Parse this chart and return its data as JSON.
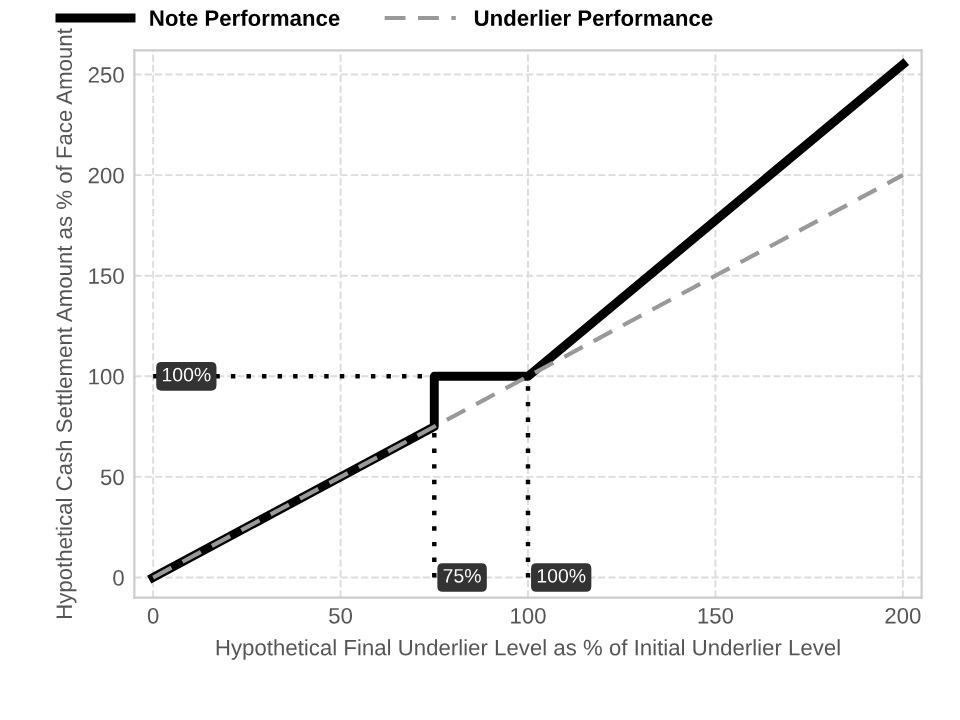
{
  "chart_data": {
    "type": "line",
    "xlabel": "Hypothetical Final Underlier Level as % of Initial Underlier Level",
    "ylabel": "Hypothetical Cash Settlement Amount as % of Face Amount",
    "xlim": [
      -5,
      205
    ],
    "ylim": [
      -10,
      262
    ],
    "xticks": [
      0,
      50,
      100,
      150,
      200
    ],
    "yticks": [
      0,
      50,
      100,
      150,
      200,
      250
    ],
    "grid": true,
    "legend": "top left",
    "series": [
      {
        "name": "Note Performance",
        "color": "#000000",
        "x": [
          0,
          75,
          75,
          100,
          200
        ],
        "values": [
          0,
          75,
          100,
          100,
          255
        ],
        "line_style": "solid"
      },
      {
        "name": "Underlier Performance",
        "color": "#999999",
        "x": [
          0,
          200
        ],
        "values": [
          0,
          200
        ],
        "line_style": "dashed"
      },
      {
        "color": "#000000",
        "x": [
          0,
          75
        ],
        "values": [
          100,
          100
        ],
        "line_style": "dotted"
      },
      {
        "color": "#000000",
        "x": [
          75,
          75
        ],
        "values": [
          0,
          75
        ],
        "line_style": "dotted"
      },
      {
        "color": "#000000",
        "x": [
          100,
          100
        ],
        "values": [
          0,
          100
        ],
        "line_style": "dotted"
      }
    ],
    "annotations": [
      {
        "text": "100%",
        "x": 0,
        "y": 100
      },
      {
        "text": "75%",
        "x": 75,
        "y": 0
      },
      {
        "text": "100%",
        "x": 100,
        "y": 0
      }
    ]
  }
}
